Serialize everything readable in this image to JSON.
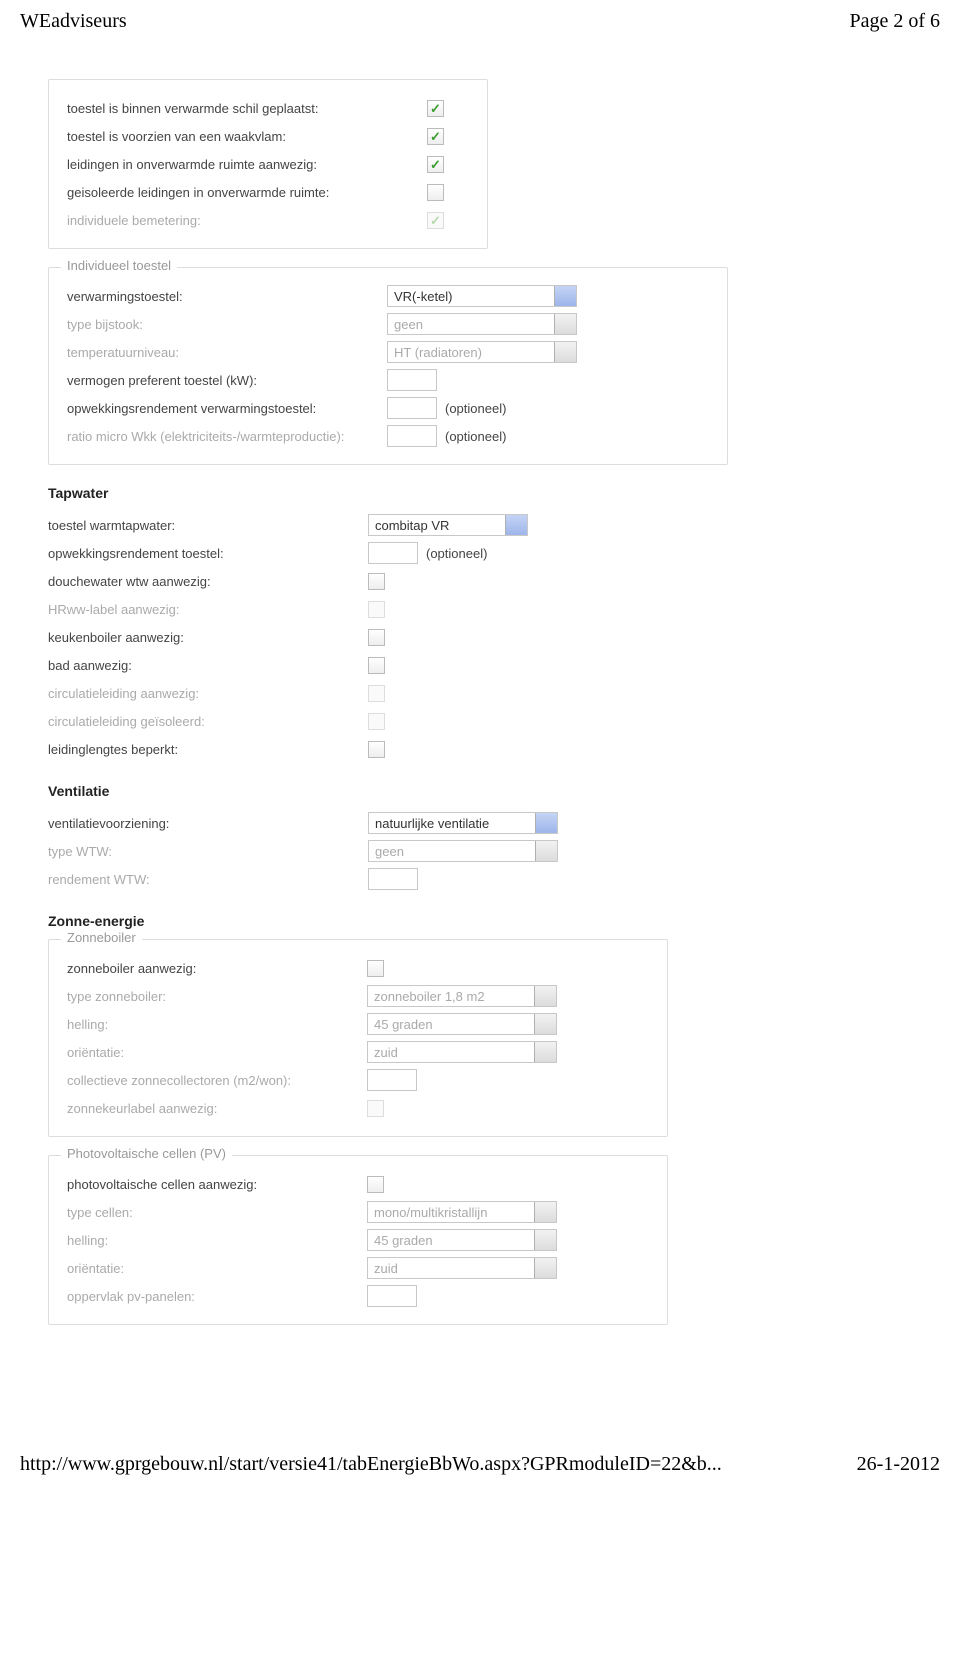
{
  "header": {
    "title": "WEadviseurs",
    "page": "Page 2 of 6"
  },
  "footer": {
    "url": "http://www.gprgebouw.nl/start/versie41/tabEnergieBbWo.aspx?GPRmoduleID=22&b...",
    "date": "26-1-2012"
  },
  "group_top": {
    "rows": [
      {
        "label": "toestel is binnen verwarmde schil geplaatst:",
        "checked": true,
        "disabled": false
      },
      {
        "label": "toestel is voorzien van een waakvlam:",
        "checked": true,
        "disabled": false
      },
      {
        "label": "leidingen in onverwarmde ruimte aanwezig:",
        "checked": true,
        "disabled": false
      },
      {
        "label": "geisoleerde leidingen in onverwarmde ruimte:",
        "checked": false,
        "disabled": false
      },
      {
        "label": "individuele bemetering:",
        "checked": true,
        "disabled": true
      }
    ]
  },
  "group_individueel": {
    "legend": "Individueel toestel",
    "verwarmingstoestel": {
      "label": "verwarmingstoestel:",
      "value": "VR(-ketel)",
      "disabled": false
    },
    "type_bijstook": {
      "label": "type bijstook:",
      "value": "geen",
      "disabled": true
    },
    "temperatuurniveau": {
      "label": "temperatuurniveau:",
      "value": "HT (radiatoren)",
      "disabled": true
    },
    "vermogen": {
      "label": "vermogen preferent toestel (kW):"
    },
    "opwek_rendement": {
      "label": "opwekkingsrendement verwarmingstoestel:",
      "note": "(optioneel)"
    },
    "ratio_wkk": {
      "label": "ratio micro Wkk (elektriciteits-/warmteproductie):",
      "note": "(optioneel)",
      "disabled": true
    }
  },
  "section_tapwater": {
    "title": "Tapwater",
    "toestel": {
      "label": "toestel warmtapwater:",
      "value": "combitap VR",
      "disabled": false
    },
    "opwek_rendement": {
      "label": "opwekkingsrendement toestel:",
      "note": "(optioneel)"
    },
    "checks": [
      {
        "label": "douchewater wtw aanwezig:",
        "checked": false,
        "disabled": false
      },
      {
        "label": "HRww-label aanwezig:",
        "checked": false,
        "disabled": true
      },
      {
        "label": "keukenboiler aanwezig:",
        "checked": false,
        "disabled": false
      },
      {
        "label": "bad aanwezig:",
        "checked": false,
        "disabled": false
      },
      {
        "label": "circulatieleiding aanwezig:",
        "checked": false,
        "disabled": true
      },
      {
        "label": "circulatieleiding geïsoleerd:",
        "checked": false,
        "disabled": true
      },
      {
        "label": "leidinglengtes beperkt:",
        "checked": false,
        "disabled": false
      }
    ]
  },
  "section_ventilatie": {
    "title": "Ventilatie",
    "voorziening": {
      "label": "ventilatievoorziening:",
      "value": "natuurlijke ventilatie",
      "disabled": false
    },
    "type_wtw": {
      "label": "type WTW:",
      "value": "geen",
      "disabled": true
    },
    "rendement": {
      "label": "rendement WTW:",
      "disabled": true
    }
  },
  "section_zonne": {
    "title": "Zonne-energie",
    "zonneboiler": {
      "legend": "Zonneboiler",
      "aanwezig": {
        "label": "zonneboiler aanwezig:",
        "checked": false,
        "disabled": false
      },
      "type": {
        "label": "type zonneboiler:",
        "value": "zonneboiler 1,8 m2",
        "disabled": true
      },
      "helling": {
        "label": "helling:",
        "value": "45 graden",
        "disabled": true
      },
      "orientatie": {
        "label": "oriëntatie:",
        "value": "zuid",
        "disabled": true
      },
      "collectoren": {
        "label": "collectieve zonnecollectoren (m2/won):",
        "disabled": true
      },
      "keurlabel": {
        "label": "zonnekeurlabel aanwezig:",
        "checked": false,
        "disabled": true
      }
    },
    "pv": {
      "legend": "Photovoltaische cellen (PV)",
      "aanwezig": {
        "label": "photovoltaische cellen aanwezig:",
        "checked": false,
        "disabled": false
      },
      "type": {
        "label": "type cellen:",
        "value": "mono/multikristallijn",
        "disabled": true
      },
      "helling": {
        "label": "helling:",
        "value": "45 graden",
        "disabled": true
      },
      "orientatie": {
        "label": "oriëntatie:",
        "value": "zuid",
        "disabled": true
      },
      "oppervlak": {
        "label": "oppervlak pv-panelen:",
        "disabled": true
      }
    }
  }
}
